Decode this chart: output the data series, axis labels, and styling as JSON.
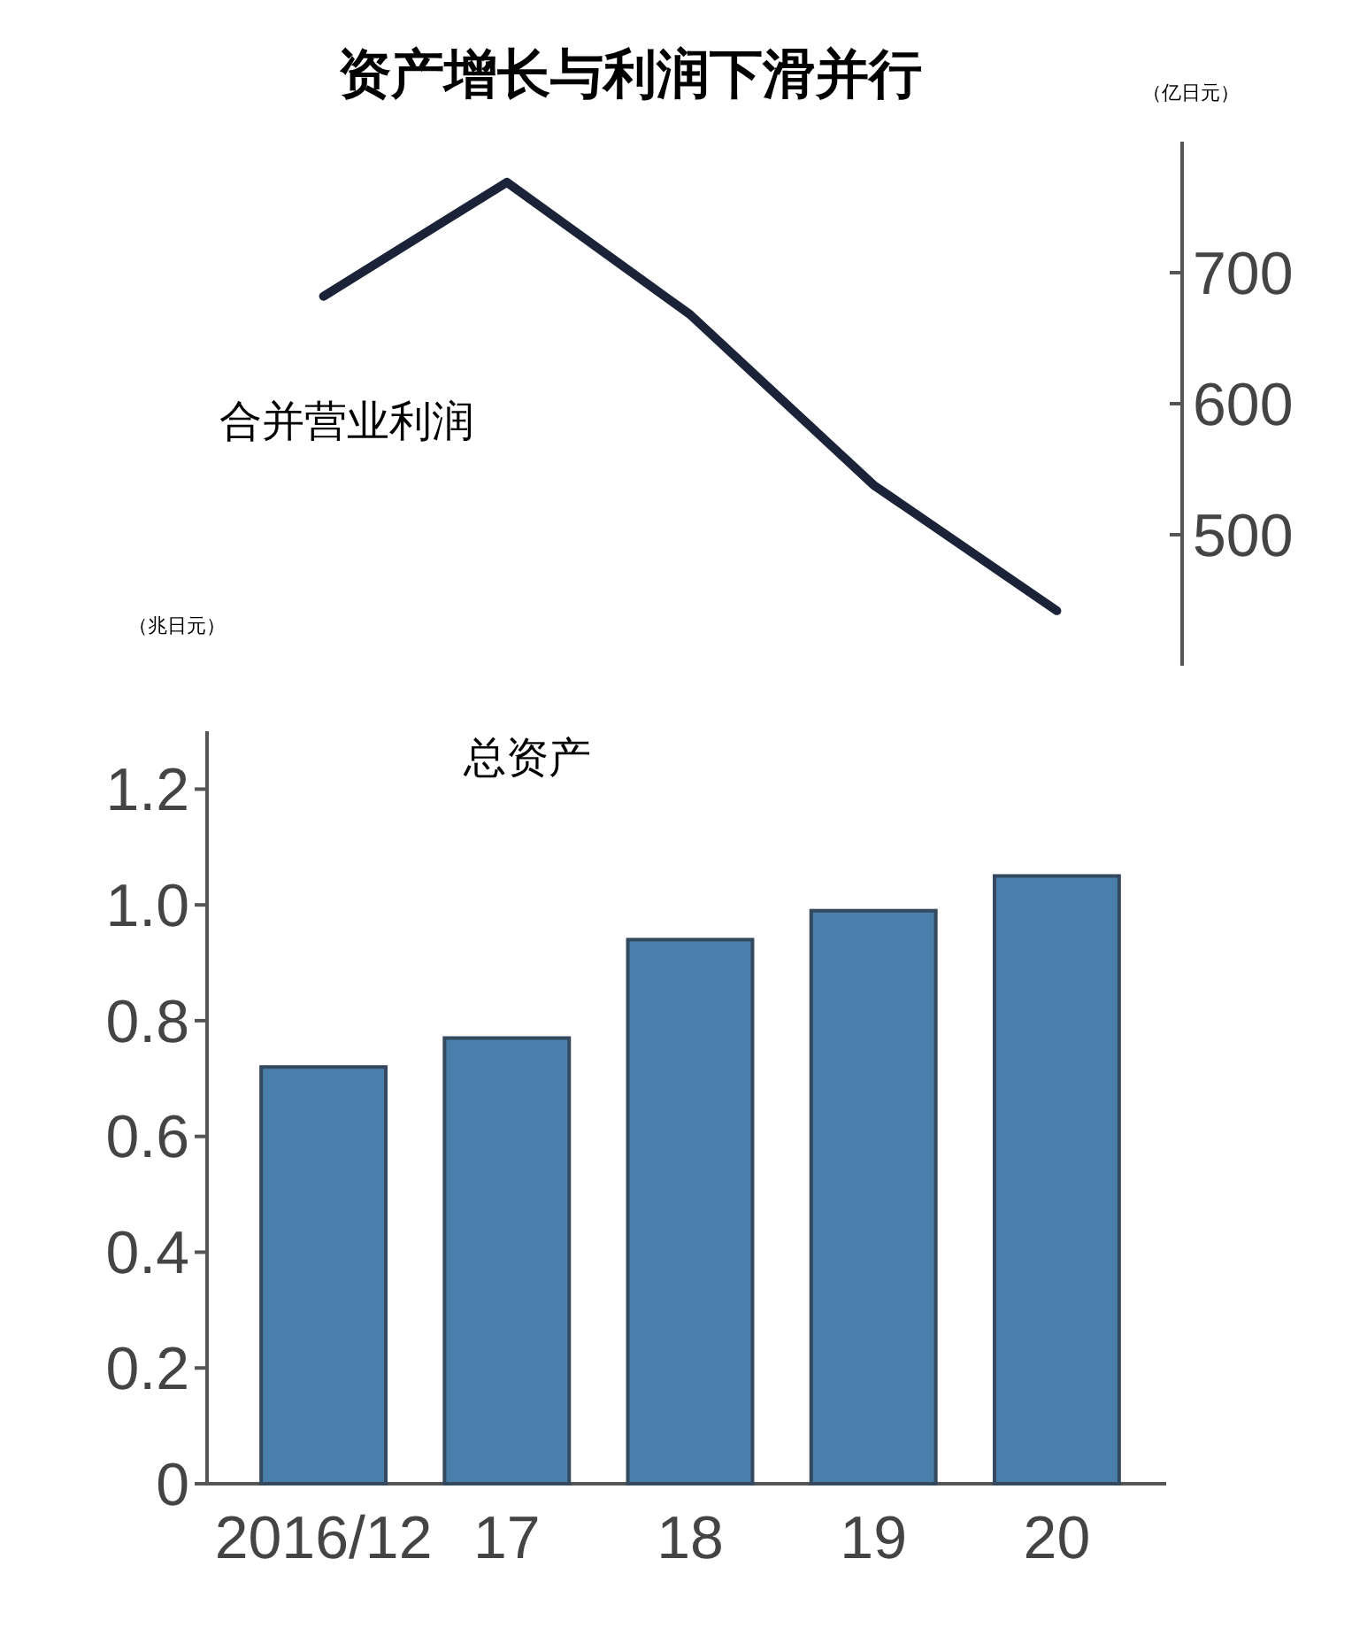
{
  "chart_data": [
    {
      "type": "line",
      "title": "资产增长与利润下滑并行",
      "ylabel": "（亿日元）",
      "categories": [
        null,
        null,
        null,
        null,
        null
      ],
      "series": [
        {
          "name": "合并营业利润",
          "color": "#1a2338",
          "values": [
            682,
            769,
            668,
            538,
            442
          ]
        }
      ],
      "ylim": [
        400,
        800
      ],
      "yticks": [
        500,
        600,
        700
      ],
      "marker": "none",
      "line_style": "solid",
      "grid": false,
      "tick_labels": "y"
    },
    {
      "type": "bar",
      "ylabel": "（兆日元）",
      "categories": [
        "2016/12",
        "17",
        "18",
        "19",
        "20"
      ],
      "series": [
        {
          "name": "总资产",
          "color": "#4a7fab",
          "values": [
            0.72,
            0.77,
            0.94,
            0.99,
            1.05
          ]
        }
      ],
      "ylim": [
        0,
        1.3
      ],
      "yticks": [
        0,
        {
          "value": 0.2,
          "label": "0.2"
        },
        {
          "value": 0.4,
          "label": "0.4"
        },
        {
          "value": 0.6,
          "label": "0.6"
        },
        {
          "value": 0.8,
          "label": "0.8"
        },
        {
          "value": 1.0,
          "label": "1.0"
        },
        {
          "value": 1.2,
          "label": "1.2"
        }
      ],
      "grid": false
    }
  ]
}
